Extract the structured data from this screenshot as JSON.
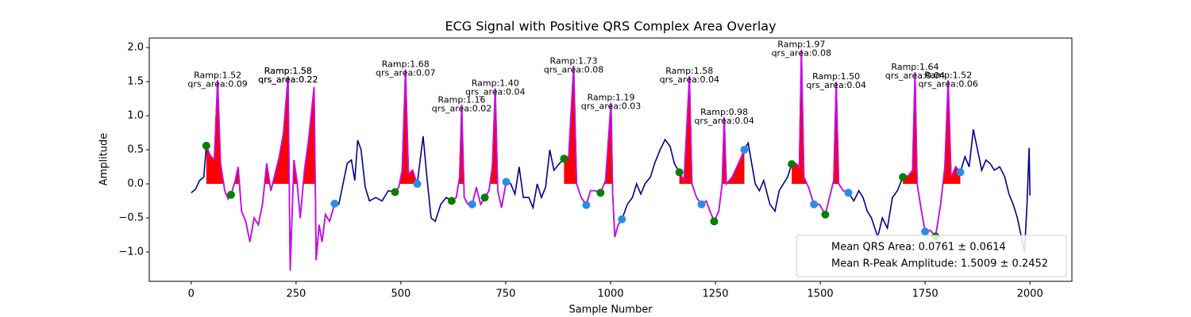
{
  "chart_data": {
    "type": "line",
    "title": "ECG Signal with Positive QRS Complex Area Overlay",
    "xlabel": "Sample Number",
    "ylabel": "Amplitude",
    "xlim": [
      -100,
      2100
    ],
    "xticks": [
      0,
      250,
      500,
      750,
      1000,
      1250,
      1500,
      1750,
      2000
    ],
    "ylim": [
      -1.43,
      2.14
    ],
    "yticks": [
      {
        "value": -1.0,
        "label": "−1.0"
      },
      {
        "value": -0.5,
        "label": "−0.5"
      },
      {
        "value": 0.0,
        "label": "0.0"
      },
      {
        "value": 0.5,
        "label": "0.5"
      },
      {
        "value": 1.0,
        "label": "1.0"
      },
      {
        "value": 1.5,
        "label": "1.5"
      },
      {
        "value": 2.0,
        "label": "2.0"
      }
    ],
    "grid": false,
    "color": "#00008b",
    "qrs_color": "#c90ee6",
    "area_color": "red",
    "x": [
      0,
      10,
      20,
      30,
      36,
      45,
      55,
      63,
      70,
      80,
      88,
      95,
      105,
      112,
      120,
      130,
      140,
      150,
      160,
      170,
      180,
      190,
      200,
      210,
      220,
      231,
      236,
      245,
      252,
      260,
      270,
      280,
      293,
      298,
      305,
      312,
      320,
      330,
      342,
      352,
      362,
      372,
      382,
      390,
      397,
      405,
      415,
      425,
      440,
      455,
      470,
      486,
      495,
      503,
      511,
      518,
      528,
      539,
      553,
      562,
      572,
      582,
      595,
      608,
      621,
      632,
      640,
      645,
      651,
      660,
      670,
      680,
      690,
      700,
      710,
      718,
      725,
      731,
      740,
      751,
      762,
      772,
      782,
      792,
      805,
      815,
      825,
      835,
      845,
      855,
      865,
      878,
      889,
      900,
      912,
      919,
      930,
      942,
      952,
      963,
      976,
      988,
      1001,
      1005,
      1010,
      1018,
      1027,
      1040,
      1052,
      1062,
      1072,
      1082,
      1095,
      1105,
      1118,
      1130,
      1142,
      1152,
      1164,
      1175,
      1188,
      1194,
      1205,
      1217,
      1228,
      1237,
      1247,
      1258,
      1266,
      1271,
      1276,
      1290,
      1305,
      1319,
      1328,
      1335,
      1345,
      1355,
      1365,
      1380,
      1392,
      1402,
      1412,
      1422,
      1432,
      1442,
      1450,
      1455,
      1461,
      1472,
      1485,
      1498,
      1512,
      1522,
      1532,
      1538,
      1544,
      1555,
      1567,
      1580,
      1592,
      1602,
      1612,
      1622,
      1637,
      1648,
      1660,
      1672,
      1684,
      1697,
      1710,
      1720,
      1726,
      1731,
      1740,
      1750,
      1762,
      1775,
      1787,
      1797,
      1805,
      1812,
      1823,
      1834,
      1845,
      1855,
      1865,
      1875,
      1885,
      1895,
      1905,
      1915,
      1928,
      1940,
      1950,
      1960,
      1970,
      1982,
      1987,
      1993,
      1998,
      2000
    ],
    "values": [
      -0.13,
      -0.08,
      0.05,
      0.1,
      0.56,
      0.42,
      0.35,
      1.52,
      0.3,
      -0.1,
      -0.22,
      -0.16,
      0.05,
      0.25,
      -0.4,
      -0.55,
      -0.85,
      -0.5,
      -0.6,
      -0.3,
      0.3,
      -0.1,
      0.15,
      0.4,
      0.75,
      1.58,
      -1.27,
      0.35,
      0.05,
      -0.5,
      0.2,
      0.65,
      1.42,
      -1.12,
      -0.6,
      -0.85,
      -0.45,
      -0.55,
      -0.29,
      -0.3,
      0.0,
      0.3,
      0.35,
      0.05,
      0.64,
      0.5,
      -0.05,
      -0.25,
      -0.2,
      -0.25,
      -0.1,
      -0.12,
      -0.05,
      0.2,
      1.68,
      0.15,
      0.2,
      0.0,
      0.7,
      0.1,
      -0.5,
      -0.55,
      -0.3,
      -0.2,
      -0.25,
      -0.2,
      0.1,
      1.16,
      -0.2,
      -0.3,
      -0.3,
      -0.05,
      -0.3,
      -0.2,
      -0.1,
      0.25,
      1.4,
      -0.1,
      -0.35,
      0.03,
      0.0,
      -0.15,
      0.25,
      -0.2,
      -0.2,
      -0.35,
      0.0,
      -0.2,
      -0.05,
      0.5,
      0.2,
      0.3,
      0.37,
      0.4,
      1.73,
      0.0,
      -0.2,
      -0.31,
      -0.1,
      -0.1,
      -0.13,
      0.05,
      1.19,
      -0.15,
      -0.78,
      -0.6,
      -0.52,
      -0.3,
      -0.2,
      0.0,
      -0.15,
      0.0,
      0.1,
      0.3,
      0.5,
      0.65,
      0.55,
      0.3,
      0.17,
      0.05,
      1.58,
      0.0,
      -0.2,
      -0.3,
      -0.25,
      -0.4,
      -0.55,
      -0.4,
      0.0,
      0.98,
      0.0,
      0.1,
      0.3,
      0.5,
      0.6,
      0.35,
      0.0,
      -0.1,
      0.05,
      -0.3,
      -0.4,
      -0.1,
      0.0,
      0.1,
      0.29,
      0.3,
      0.25,
      1.97,
      0.1,
      -0.05,
      -0.3,
      -0.3,
      -0.45,
      -0.2,
      0.05,
      1.5,
      0.0,
      -0.1,
      -0.13,
      -0.25,
      -0.1,
      -0.2,
      -0.4,
      -0.5,
      -0.78,
      -0.5,
      -0.65,
      -0.2,
      -0.1,
      0.1,
      0.12,
      0.2,
      1.64,
      0.0,
      -0.35,
      -0.7,
      -0.68,
      -0.77,
      -0.3,
      0.25,
      1.52,
      0.1,
      0.25,
      0.17,
      0.4,
      0.25,
      0.8,
      0.5,
      0.2,
      0.35,
      0.3,
      0.2,
      0.25,
      0.1,
      -0.15,
      -0.3,
      -0.5,
      -0.85,
      -1.0,
      -0.3,
      0.53,
      -0.17
    ],
    "qrs_windows": [
      [
        36,
        342
      ],
      [
        486,
        539
      ],
      [
        621,
        751
      ],
      [
        889,
        1027
      ],
      [
        1164,
        1319
      ],
      [
        1432,
        1567
      ],
      [
        1697,
        1834
      ]
    ],
    "onsets": {
      "color": "green",
      "x": [
        36,
        95,
        486,
        621,
        700,
        889,
        976,
        1164,
        1247,
        1432,
        1512,
        1697,
        1775
      ],
      "values": [
        0.56,
        -0.16,
        -0.12,
        -0.25,
        -0.2,
        0.37,
        -0.13,
        0.17,
        -0.55,
        0.29,
        -0.45,
        0.1,
        -0.77
      ]
    },
    "offsets": {
      "color": "#2b8ceb",
      "x": [
        342,
        539,
        670,
        751,
        942,
        1027,
        1217,
        1319,
        1485,
        1567,
        1750,
        1834
      ],
      "values": [
        -0.29,
        0.0,
        -0.3,
        0.03,
        -0.31,
        -0.52,
        -0.3,
        0.5,
        -0.3,
        -0.13,
        -0.7,
        0.17
      ]
    },
    "annotations": [
      {
        "x": 63,
        "y": 1.52,
        "lines": [
          "Ramp:1.52",
          "qrs_area:0.09"
        ]
      },
      {
        "x": 231,
        "y": 1.58,
        "lines": [
          "Ramp:1.58",
          "qrs_area:0.22"
        ]
      },
      {
        "x": 231,
        "y": 1.58,
        "lines": [
          "Ramp:1.58",
          "qrs_area:0.22"
        ]
      },
      {
        "x": 511,
        "y": 1.68,
        "lines": [
          "Ramp:1.68",
          "qrs_area:0.07"
        ]
      },
      {
        "x": 645,
        "y": 1.16,
        "lines": [
          "Ramp:1.16",
          "qrs_area:0.02"
        ]
      },
      {
        "x": 725,
        "y": 1.4,
        "lines": [
          "Ramp:1.40",
          "qrs_area:0.04"
        ]
      },
      {
        "x": 912,
        "y": 1.73,
        "lines": [
          "Ramp:1.73",
          "qrs_area:0.08"
        ]
      },
      {
        "x": 1001,
        "y": 1.19,
        "lines": [
          "Ramp:1.19",
          "qrs_area:0.03"
        ]
      },
      {
        "x": 1188,
        "y": 1.58,
        "lines": [
          "Ramp:1.58",
          "qrs_area:0.04"
        ]
      },
      {
        "x": 1271,
        "y": 0.98,
        "lines": [
          "Ramp:0.98",
          "qrs_area:0.04"
        ]
      },
      {
        "x": 1455,
        "y": 1.97,
        "lines": [
          "Ramp:1.97",
          "qrs_area:0.08"
        ]
      },
      {
        "x": 1538,
        "y": 1.5,
        "lines": [
          "Ramp:1.50",
          "qrs_area:0.04"
        ]
      },
      {
        "x": 1726,
        "y": 1.64,
        "lines": [
          "Ramp:1.64",
          "qrs_area:0.04"
        ]
      },
      {
        "x": 1805,
        "y": 1.52,
        "lines": [
          "Ramp:1.52",
          "qrs_area:0.06"
        ]
      }
    ],
    "legend": {
      "loc": "lower right",
      "entries": [
        "Mean QRS Area: 0.0761 ± 0.0614",
        "Mean R-Peak Amplitude: 1.5009 ± 0.2452"
      ]
    }
  }
}
